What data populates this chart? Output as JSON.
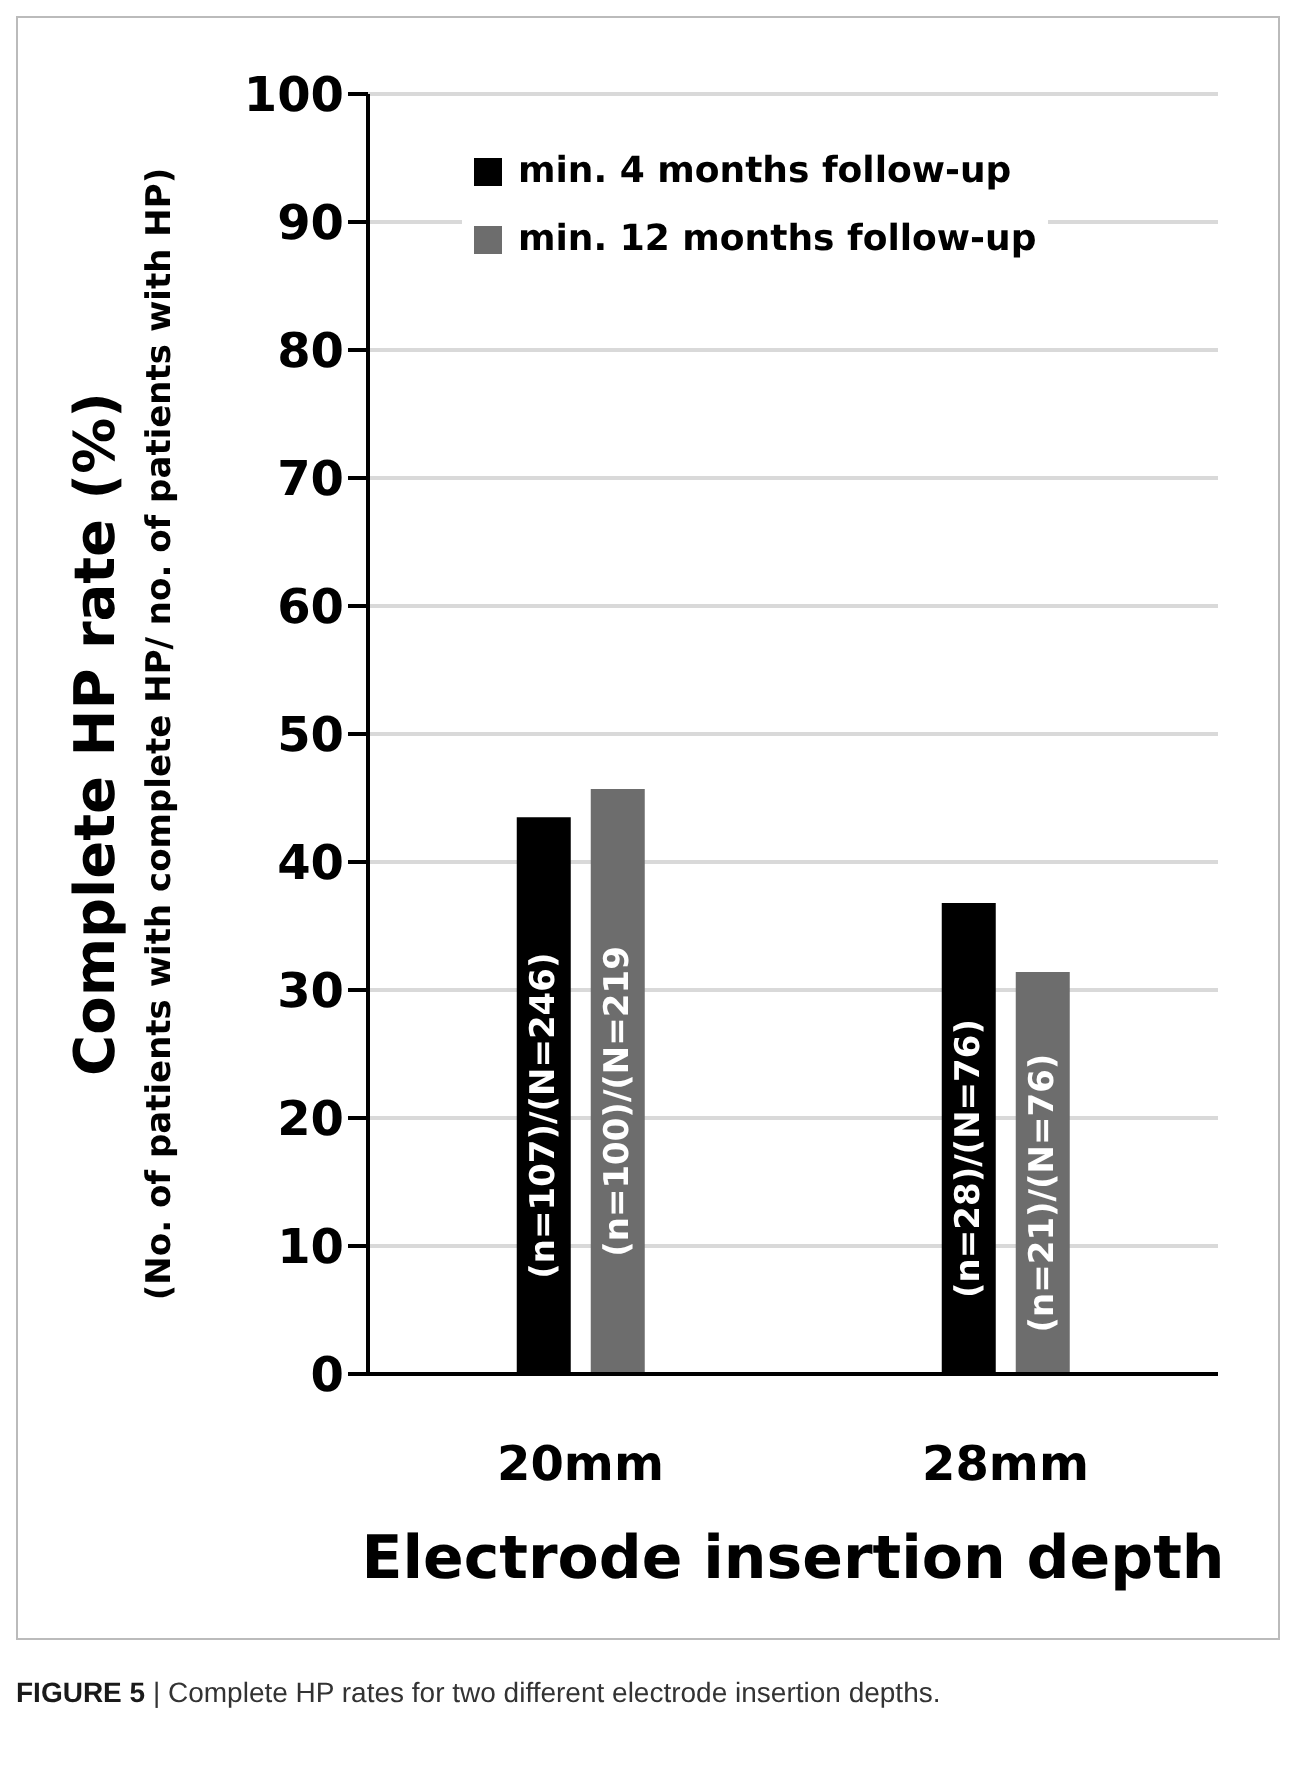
{
  "chart_data": {
    "type": "bar",
    "ylabel": "Complete HP rate (%)\n(No. of patients with complete HP/ no. of patients with HP)",
    "xlabel": "Electrode insertion depth",
    "categories": [
      "20mm",
      "28mm"
    ],
    "series": [
      {
        "name": "min. 4 months follow-up",
        "color": "#000000",
        "values": [
          43.5,
          36.8
        ],
        "value_labels": [
          "(n=107)/(N=246)",
          "(n=28)/(N=76)"
        ]
      },
      {
        "name": "min. 12 months follow-up",
        "color": "#6d6d6d",
        "values": [
          45.7,
          31.4
        ],
        "value_labels": [
          "(n=100)/(N=219",
          "(n=21)/(N=76)"
        ]
      }
    ],
    "ylim": [
      0,
      100
    ],
    "yticks": [
      0,
      10,
      20,
      30,
      40,
      50,
      60,
      70,
      80,
      90,
      100
    ],
    "grid": "y",
    "legend": "top left",
    "annotations": [
      "FIGURE 5 | Complete HP rates for two different electrode insertion depths."
    ]
  }
}
